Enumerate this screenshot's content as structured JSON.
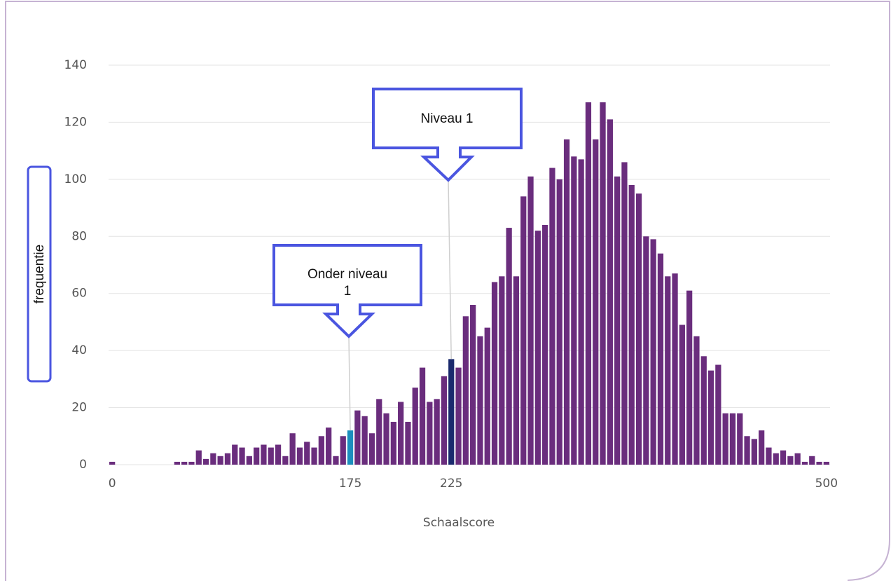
{
  "chart_data": {
    "type": "bar",
    "xlabel": "Schaalscore",
    "ylabel": "frequentie",
    "categories": [
      "0",
      null,
      null,
      null,
      null,
      null,
      null,
      null,
      null,
      null,
      null,
      null,
      null,
      null,
      null,
      null,
      null,
      null,
      null,
      null,
      null,
      null,
      null,
      null,
      null,
      null,
      null,
      null,
      null,
      null,
      null,
      null,
      null,
      "175",
      null,
      null,
      null,
      null,
      null,
      null,
      null,
      null,
      null,
      null,
      null,
      null,
      null,
      "225",
      null,
      null,
      null,
      null,
      null,
      null,
      null,
      null,
      null,
      null,
      null,
      null,
      null,
      null,
      null,
      null,
      null,
      null,
      null,
      null,
      null,
      null,
      null,
      null,
      null,
      null,
      null,
      null,
      null,
      null,
      null,
      null,
      null,
      null,
      null,
      null,
      null,
      null,
      null,
      null,
      null,
      null,
      null,
      null,
      null,
      null,
      null,
      null,
      null,
      null,
      null,
      "500"
    ],
    "values": [
      1,
      0,
      0,
      0,
      0,
      0,
      0,
      0,
      0,
      1,
      1,
      1,
      5,
      2,
      4,
      3,
      4,
      7,
      6,
      3,
      6,
      7,
      6,
      7,
      3,
      11,
      6,
      8,
      6,
      10,
      13,
      3,
      10,
      12,
      19,
      17,
      11,
      23,
      18,
      15,
      22,
      15,
      27,
      34,
      22,
      23,
      31,
      37,
      34,
      52,
      56,
      45,
      48,
      64,
      66,
      83,
      66,
      94,
      101,
      82,
      84,
      104,
      100,
      114,
      108,
      107,
      127,
      114,
      127,
      121,
      101,
      106,
      98,
      95,
      80,
      79,
      74,
      66,
      67,
      49,
      61,
      45,
      38,
      33,
      35,
      18,
      18,
      18,
      10,
      9,
      12,
      6,
      4,
      5,
      3,
      4,
      1,
      3,
      1,
      1
    ],
    "color": "#6a2d7d",
    "highlight_colors": {
      "175": "#1c8fbe",
      "225": "#1b2a6e"
    },
    "ylim": [
      0,
      140
    ],
    "yticks": [
      0,
      20,
      40,
      60,
      80,
      100,
      120,
      140
    ],
    "grid": true,
    "annotations": [
      {
        "text": "Onder niveau 1"
      },
      {
        "text": "Niveau 1"
      }
    ]
  }
}
